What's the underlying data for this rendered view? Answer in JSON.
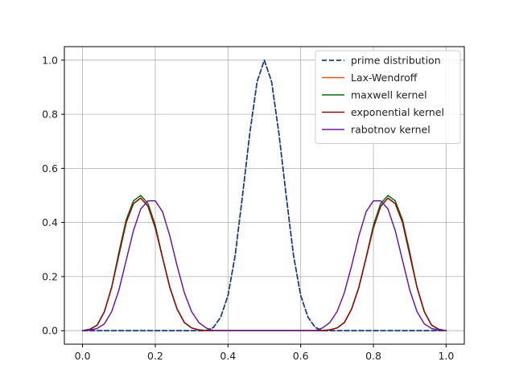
{
  "chart_data": {
    "type": "line",
    "title": "",
    "xlabel": "",
    "ylabel": "",
    "xlim": [
      -0.05,
      1.05
    ],
    "ylim": [
      -0.05,
      1.05
    ],
    "xticks": [
      "0.0",
      "0.2",
      "0.4",
      "0.6",
      "0.8",
      "1.0"
    ],
    "yticks": [
      "0.0",
      "0.2",
      "0.4",
      "0.6",
      "0.8",
      "1.0"
    ],
    "grid": true,
    "legend_position": "top-right",
    "series": [
      {
        "name": "prime distribution",
        "color": "#1f3f7a",
        "style": "dashed",
        "x": [
          0.0,
          0.34,
          0.36,
          0.38,
          0.4,
          0.42,
          0.44,
          0.46,
          0.48,
          0.5,
          0.52,
          0.54,
          0.56,
          0.58,
          0.6,
          0.62,
          0.64,
          0.66,
          1.0
        ],
        "y": [
          0.0,
          0.0,
          0.012,
          0.05,
          0.13,
          0.28,
          0.5,
          0.73,
          0.92,
          1.0,
          0.92,
          0.73,
          0.5,
          0.28,
          0.13,
          0.05,
          0.012,
          0.0,
          0.0
        ]
      },
      {
        "name": "Lax-Wendroff",
        "color": "#e8541c",
        "style": "solid",
        "x": [
          0.0,
          0.02,
          0.04,
          0.06,
          0.08,
          0.1,
          0.12,
          0.14,
          0.16,
          0.18,
          0.2,
          0.22,
          0.24,
          0.26,
          0.28,
          0.3,
          0.32,
          0.34,
          0.66,
          0.68,
          0.7,
          0.72,
          0.74,
          0.76,
          0.78,
          0.8,
          0.82,
          0.84,
          0.86,
          0.88,
          0.9,
          0.92,
          0.94,
          0.96,
          0.98,
          1.0
        ],
        "y": [
          0.0,
          0.005,
          0.02,
          0.07,
          0.16,
          0.28,
          0.4,
          0.47,
          0.49,
          0.46,
          0.38,
          0.27,
          0.16,
          0.08,
          0.03,
          0.01,
          0.003,
          0.0,
          0.0,
          0.003,
          0.01,
          0.03,
          0.08,
          0.16,
          0.27,
          0.38,
          0.46,
          0.49,
          0.47,
          0.4,
          0.28,
          0.16,
          0.07,
          0.02,
          0.005,
          0.0
        ]
      },
      {
        "name": "maxwell kernel",
        "color": "#0d6e0d",
        "style": "solid",
        "x": [
          0.0,
          0.02,
          0.04,
          0.06,
          0.08,
          0.1,
          0.12,
          0.14,
          0.16,
          0.18,
          0.2,
          0.22,
          0.24,
          0.26,
          0.28,
          0.3,
          0.32,
          0.34,
          0.66,
          0.68,
          0.7,
          0.72,
          0.74,
          0.76,
          0.78,
          0.8,
          0.82,
          0.84,
          0.86,
          0.88,
          0.9,
          0.92,
          0.94,
          0.96,
          0.98,
          1.0
        ],
        "y": [
          0.0,
          0.005,
          0.02,
          0.07,
          0.16,
          0.29,
          0.41,
          0.48,
          0.5,
          0.47,
          0.39,
          0.27,
          0.16,
          0.08,
          0.03,
          0.01,
          0.003,
          0.0,
          0.0,
          0.003,
          0.01,
          0.03,
          0.08,
          0.16,
          0.27,
          0.39,
          0.47,
          0.5,
          0.48,
          0.41,
          0.29,
          0.16,
          0.07,
          0.02,
          0.005,
          0.0
        ]
      },
      {
        "name": "exponential kernel",
        "color": "#8b1010",
        "style": "solid",
        "x": [
          0.0,
          0.02,
          0.04,
          0.06,
          0.08,
          0.1,
          0.12,
          0.14,
          0.16,
          0.18,
          0.2,
          0.22,
          0.24,
          0.26,
          0.28,
          0.3,
          0.32,
          0.34,
          0.66,
          0.68,
          0.7,
          0.72,
          0.74,
          0.76,
          0.78,
          0.8,
          0.82,
          0.84,
          0.86,
          0.88,
          0.9,
          0.92,
          0.94,
          0.96,
          0.98,
          1.0
        ],
        "y": [
          0.0,
          0.005,
          0.02,
          0.07,
          0.16,
          0.28,
          0.4,
          0.47,
          0.49,
          0.46,
          0.38,
          0.27,
          0.16,
          0.08,
          0.03,
          0.01,
          0.003,
          0.0,
          0.0,
          0.003,
          0.01,
          0.03,
          0.08,
          0.16,
          0.27,
          0.38,
          0.46,
          0.49,
          0.47,
          0.4,
          0.28,
          0.16,
          0.07,
          0.02,
          0.005,
          0.0
        ]
      },
      {
        "name": "rabotnov kernel",
        "color": "#6a1b9a",
        "style": "solid",
        "x": [
          0.0,
          0.02,
          0.04,
          0.06,
          0.08,
          0.1,
          0.12,
          0.14,
          0.16,
          0.18,
          0.2,
          0.22,
          0.24,
          0.26,
          0.28,
          0.3,
          0.32,
          0.34,
          0.36,
          0.64,
          0.66,
          0.68,
          0.7,
          0.72,
          0.74,
          0.76,
          0.78,
          0.8,
          0.82,
          0.84,
          0.86,
          0.88,
          0.9,
          0.92,
          0.94,
          0.96,
          0.98,
          1.0
        ],
        "y": [
          0.0,
          0.002,
          0.008,
          0.025,
          0.07,
          0.15,
          0.26,
          0.37,
          0.45,
          0.48,
          0.48,
          0.44,
          0.35,
          0.24,
          0.14,
          0.07,
          0.03,
          0.01,
          0.0,
          0.0,
          0.01,
          0.03,
          0.07,
          0.14,
          0.24,
          0.35,
          0.44,
          0.48,
          0.48,
          0.45,
          0.37,
          0.26,
          0.15,
          0.07,
          0.025,
          0.008,
          0.002,
          0.0
        ]
      }
    ]
  }
}
